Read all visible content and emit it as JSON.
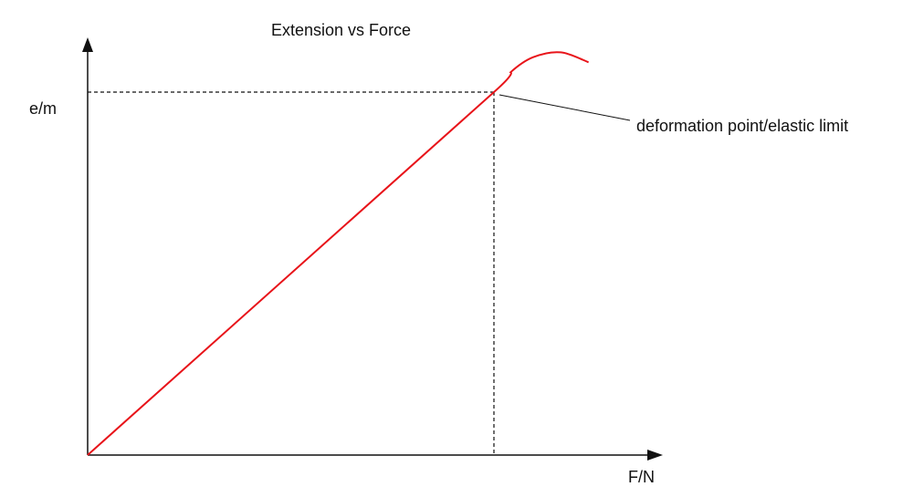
{
  "chart_data": {
    "type": "line",
    "title": "Extension vs Force",
    "xlabel": "F/N",
    "ylabel": "e/m",
    "grid": false,
    "xlim": [
      0,
      10
    ],
    "ylim": [
      0,
      10
    ],
    "series": [
      {
        "x": [
          0,
          7.3,
          7.6,
          8.0,
          8.5,
          9.0
        ],
        "y": [
          0,
          7.3,
          7.7,
          8.0,
          8.1,
          7.9
        ],
        "color": "#e8141a"
      }
    ],
    "annotations": [
      {
        "text": "deformation point/elastic limit",
        "x": 7.3,
        "y": 7.3
      }
    ],
    "reference_lines": {
      "elastic_limit_x": 7.3,
      "elastic_limit_y": 7.3,
      "style": "dashed"
    }
  },
  "colors": {
    "axis": "#111111",
    "curve": "#e8141a",
    "dashed": "#111111",
    "text": "#111111"
  }
}
